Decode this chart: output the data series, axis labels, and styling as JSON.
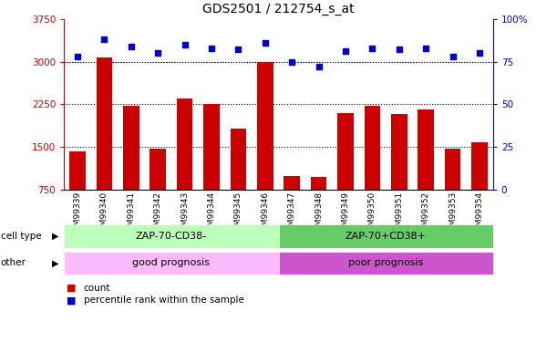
{
  "title": "GDS2501 / 212754_s_at",
  "samples": [
    "GSM99339",
    "GSM99340",
    "GSM99341",
    "GSM99342",
    "GSM99343",
    "GSM99344",
    "GSM99345",
    "GSM99346",
    "GSM99347",
    "GSM99348",
    "GSM99349",
    "GSM99350",
    "GSM99351",
    "GSM99352",
    "GSM99353",
    "GSM99354"
  ],
  "counts": [
    1420,
    3080,
    2230,
    1470,
    2360,
    2250,
    1830,
    3000,
    1000,
    980,
    2100,
    2230,
    2080,
    2160,
    1480,
    1590
  ],
  "percentile": [
    78,
    88,
    84,
    80,
    85,
    83,
    82,
    86,
    75,
    72,
    81,
    83,
    82,
    83,
    78,
    80
  ],
  "y_min": 750,
  "y_max": 3750,
  "y_ticks_left": [
    750,
    1500,
    2250,
    3000,
    3750
  ],
  "y_ticks_right_vals": [
    0,
    25,
    50,
    75,
    100
  ],
  "y_ticks_right_labels": [
    "0",
    "25",
    "50",
    "75",
    "100%"
  ],
  "bar_color": "#cc0000",
  "scatter_color": "#0000cc",
  "cell_type_left": "ZAP-70-CD38-",
  "cell_type_right": "ZAP-70+CD38+",
  "other_left": "good prognosis",
  "other_right": "poor prognosis",
  "cell_type_left_color": "#bbffbb",
  "cell_type_right_color": "#66cc66",
  "other_left_color": "#ffbbff",
  "other_right_color": "#cc55cc",
  "split_index": 8,
  "legend_count_label": "count",
  "legend_percentile_label": "percentile rank within the sample"
}
